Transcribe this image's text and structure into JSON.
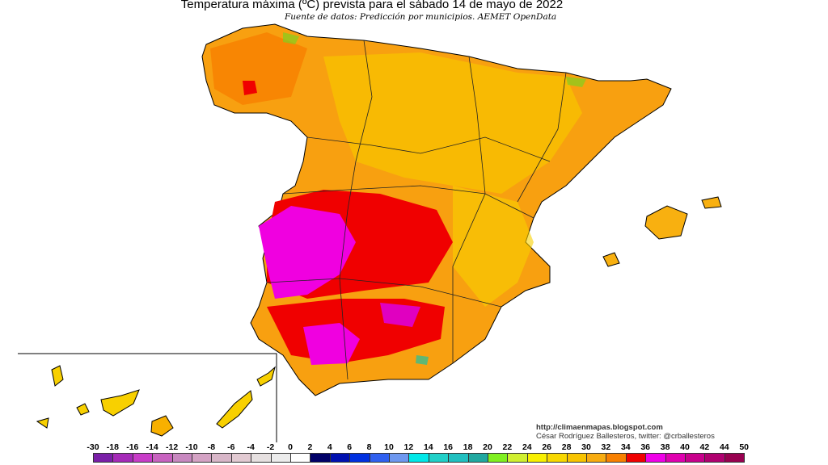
{
  "title": "Temperatura máxima (ºC) prevista para el sábado 14 de mayo de 2022",
  "subtitle": "Fuente de datos: Predicción por municipios. AEMET OpenData",
  "credits": {
    "url": "http://climaenmapas.blogspot.com",
    "author": "César Rodríguez Ballesteros, twitter: @crballesteros"
  },
  "legend": {
    "labels": [
      "-30",
      "-18",
      "-16",
      "-14",
      "-12",
      "-10",
      "-8",
      "-6",
      "-4",
      "-2",
      "0",
      "2",
      "4",
      "6",
      "8",
      "10",
      "12",
      "14",
      "16",
      "18",
      "20",
      "22",
      "24",
      "26",
      "28",
      "30",
      "32",
      "34",
      "36",
      "38",
      "40",
      "42",
      "44",
      "50"
    ],
    "colors": [
      "#7a1fa8",
      "#a52ab8",
      "#c83cc8",
      "#c862c0",
      "#c888c0",
      "#d4a2c4",
      "#d8b6c8",
      "#e2cad2",
      "#e6e0e0",
      "#ececec",
      "#ffffff",
      "#000068",
      "#0010b0",
      "#0030e0",
      "#3060f0",
      "#6e98f0",
      "#00e8e8",
      "#20d0c8",
      "#20c0c0",
      "#20a8a0",
      "#80f020",
      "#d0f030",
      "#f8f000",
      "#f8d800",
      "#f8c400",
      "#f8ac10",
      "#f88000",
      "#f00000",
      "#f000e8",
      "#e000b0",
      "#c8008c",
      "#b00070",
      "#980050",
      "#802828"
    ]
  }
}
